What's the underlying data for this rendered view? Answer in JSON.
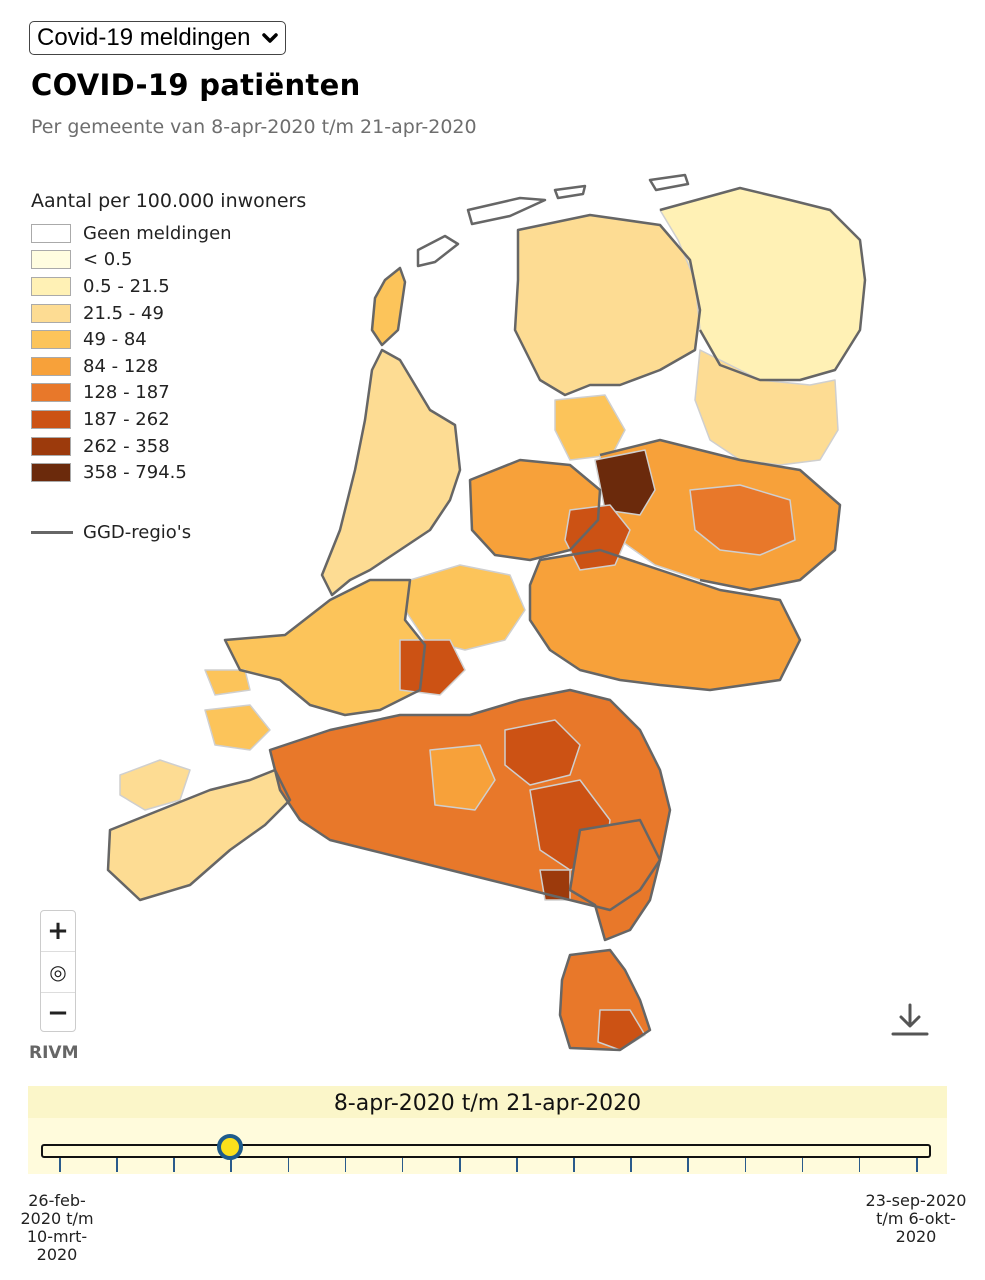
{
  "dataset_select": {
    "selected": "Covid-19 meldingen"
  },
  "title": "COVID-19 patiënten",
  "subtitle": "Per gemeente van 8-apr-2020 t/m 21-apr-2020",
  "legend": {
    "title": "Aantal per 100.000 inwoners",
    "classes": [
      {
        "label": "Geen meldingen",
        "color": "#ffffff"
      },
      {
        "label": "< 0.5",
        "color": "#fffde0"
      },
      {
        "label": "0.5 - 21.5",
        "color": "#fff1b5"
      },
      {
        "label": "21.5 - 49",
        "color": "#fddc93"
      },
      {
        "label": "49 - 84",
        "color": "#fcc45a"
      },
      {
        "label": "84 - 128",
        "color": "#f7a13a"
      },
      {
        "label": "128 - 187",
        "color": "#e8782a"
      },
      {
        "label": "187 - 262",
        "color": "#cc5214"
      },
      {
        "label": "262 - 358",
        "color": "#9c3a0c"
      },
      {
        "label": "358 - 794.5",
        "color": "#6b2a0c"
      }
    ],
    "ggd_label": "GGD-regio's",
    "ggd_color": "#666666"
  },
  "map": {
    "source_label": "RIVM",
    "zoom_in_label": "+",
    "recenter_label": "◎",
    "zoom_out_label": "−"
  },
  "timeline": {
    "current_period": "8-apr-2020 t/m 21-apr-2020",
    "start_label": "26-feb-2020 t/m 10-mrt-2020",
    "end_label": "23-sep-2020 t/m 6-okt-2020",
    "period_count": 16,
    "selected_index": 3
  }
}
